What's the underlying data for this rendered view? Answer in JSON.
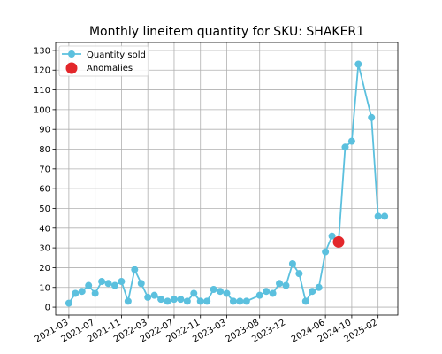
{
  "chart_data": {
    "type": "line",
    "title": "Monthly lineitem quantity for SKU: SHAKER1",
    "xlabel": "",
    "ylabel": "",
    "ylim": [
      -4,
      134
    ],
    "yticks": [
      0,
      10,
      20,
      30,
      40,
      50,
      60,
      70,
      80,
      90,
      100,
      110,
      120,
      130
    ],
    "xticks": [
      "2021-03",
      "2021-07",
      "2021-11",
      "2022-03",
      "2022-07",
      "2022-11",
      "2023-03",
      "2023-08",
      "2023-12",
      "2024-06",
      "2024-10",
      "2025-02"
    ],
    "grid": true,
    "legend_position": "top-left",
    "colors": {
      "series": "#5bc0de",
      "anomaly": "#e3272b",
      "grid": "#b0b0b0"
    },
    "series": [
      {
        "name": "Quantity sold",
        "x": [
          "2021-03",
          "2021-04",
          "2021-05",
          "2021-06",
          "2021-07",
          "2021-08",
          "2021-09",
          "2021-10",
          "2021-11",
          "2021-12",
          "2022-01",
          "2022-02",
          "2022-03",
          "2022-04",
          "2022-05",
          "2022-06",
          "2022-07",
          "2022-08",
          "2022-09",
          "2022-10",
          "2022-11",
          "2022-12",
          "2023-01",
          "2023-02",
          "2023-03",
          "2023-04",
          "2023-05",
          "2023-06",
          "2023-08",
          "2023-09",
          "2023-10",
          "2023-11",
          "2023-12",
          "2024-01",
          "2024-02",
          "2024-03",
          "2024-04",
          "2024-05",
          "2024-06",
          "2024-07",
          "2024-08",
          "2024-09",
          "2024-10",
          "2024-11",
          "2025-01",
          "2025-02",
          "2025-03"
        ],
        "values": [
          2,
          7,
          8,
          11,
          7,
          13,
          12,
          11,
          13,
          3,
          19,
          12,
          5,
          6,
          4,
          3,
          4,
          4,
          3,
          7,
          3,
          3,
          9,
          8,
          7,
          3,
          3,
          3,
          6,
          8,
          7,
          12,
          11,
          22,
          17,
          3,
          8,
          10,
          28,
          36,
          33,
          81,
          84,
          123,
          96,
          46,
          46
        ]
      },
      {
        "name": "Anomalies",
        "x": [
          "2024-08"
        ],
        "values": [
          33
        ]
      }
    ]
  }
}
